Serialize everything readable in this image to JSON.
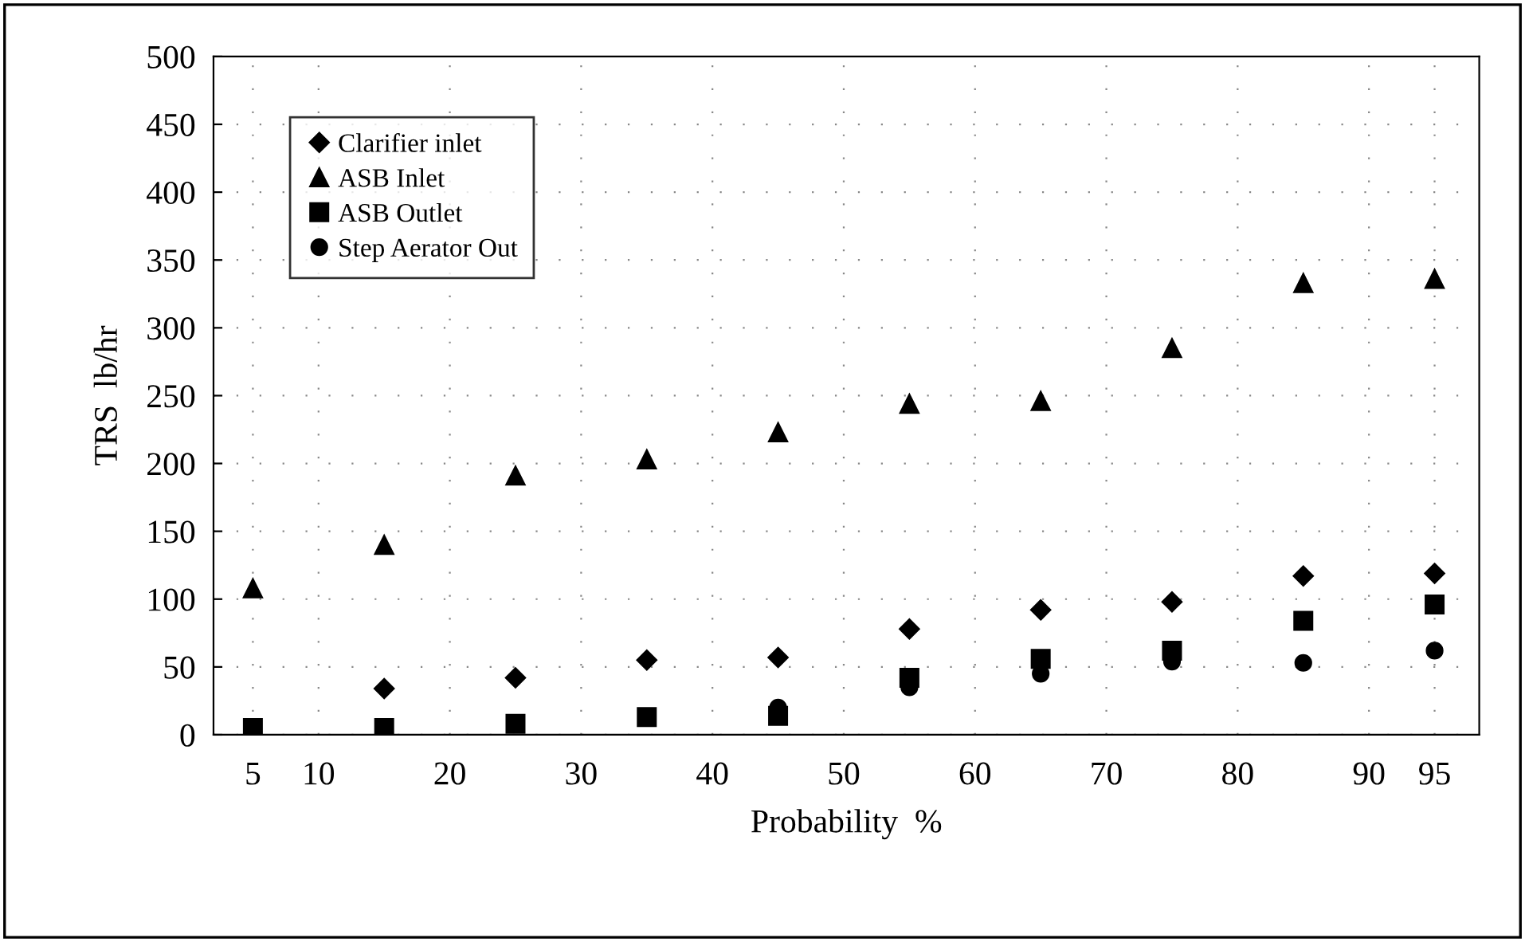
{
  "chart_data": {
    "type": "scatter",
    "xlabel": "Probability  %",
    "ylabel": "TRS  lb/hr",
    "x": [
      5,
      15,
      25,
      35,
      45,
      55,
      65,
      75,
      85,
      95
    ],
    "series": [
      {
        "name": "Clarifier inlet",
        "color": "#000000",
        "marker": "diamond",
        "values": [
          null,
          34,
          42,
          55,
          57,
          78,
          92,
          98,
          117,
          119
        ]
      },
      {
        "name": "ASB Inlet",
        "color": "#000000",
        "marker": "triangle",
        "values": [
          108,
          140,
          191,
          203,
          223,
          244,
          246,
          285,
          333,
          336
        ]
      },
      {
        "name": "ASB Outlet",
        "color": "#000000",
        "marker": "square",
        "values": [
          5,
          5,
          8,
          13,
          14,
          42,
          56,
          62,
          84,
          96
        ]
      },
      {
        "name": "Step Aerator Out",
        "color": "#000000",
        "marker": "circle",
        "values": [
          null,
          null,
          null,
          null,
          20,
          35,
          45,
          54,
          53,
          62
        ]
      }
    ],
    "xlim": [
      2,
      98.4
    ],
    "xticks": [
      5,
      10,
      20,
      30,
      40,
      50,
      60,
      70,
      80,
      90,
      95
    ],
    "ylim": [
      0,
      500
    ],
    "yticks": [
      0,
      50,
      100,
      150,
      200,
      250,
      300,
      350,
      400,
      450,
      500
    ],
    "grid": true,
    "legend": "top left"
  }
}
